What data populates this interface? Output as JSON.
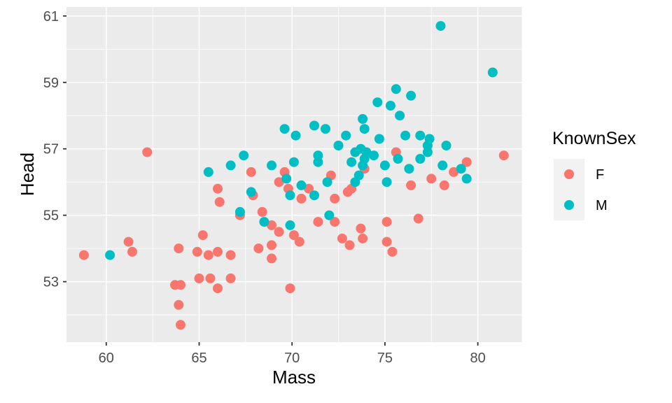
{
  "figure": {
    "background": "#ffffff",
    "panel_background": "#ebebeb",
    "grid_color": "#ffffff",
    "tick_color": "#333333",
    "tick_label_color": "#4d4d4d",
    "point_radius": 7
  },
  "chart_data": {
    "type": "scatter",
    "title": "",
    "xlabel": "Mass",
    "ylabel": "Head",
    "x_range": [
      57.86,
      82.37
    ],
    "y_range": [
      51.18,
      61.27
    ],
    "x_ticks": [
      60,
      65,
      70,
      75,
      80
    ],
    "y_ticks": [
      53,
      55,
      57,
      59,
      61
    ],
    "x_minor": [
      62.5,
      67.5,
      72.5,
      77.5
    ],
    "y_minor": [
      52,
      54,
      56,
      58,
      60
    ],
    "grid": true,
    "legend": {
      "title": "KnownSex",
      "position": "right",
      "key_fill": "#f2f2f2",
      "items": [
        {
          "label": "F",
          "color": "#F8766D"
        },
        {
          "label": "M",
          "color": "#00BFC4"
        }
      ]
    },
    "series": [
      {
        "name": "F",
        "color": "#F8766D",
        "points": [
          [
            62.2,
            56.9
          ],
          [
            66.0,
            55.8
          ],
          [
            66.1,
            55.4
          ],
          [
            67.8,
            56.3
          ],
          [
            69.6,
            56.3
          ],
          [
            69.3,
            56.0
          ],
          [
            72.1,
            56.2
          ],
          [
            73.9,
            56.4
          ],
          [
            73.2,
            55.8
          ],
          [
            73.0,
            55.7
          ],
          [
            72.3,
            55.5
          ],
          [
            67.9,
            55.6
          ],
          [
            69.8,
            55.8
          ],
          [
            70.9,
            55.8
          ],
          [
            70.5,
            55.5
          ],
          [
            67.2,
            55.0
          ],
          [
            68.4,
            55.1
          ],
          [
            68.9,
            54.7
          ],
          [
            69.3,
            54.5
          ],
          [
            70.1,
            54.4
          ],
          [
            70.4,
            54.2
          ],
          [
            71.4,
            54.8
          ],
          [
            72.3,
            54.8
          ],
          [
            75.6,
            56.9
          ],
          [
            79.4,
            56.6
          ],
          [
            78.7,
            56.3
          ],
          [
            77.5,
            56.1
          ],
          [
            78.2,
            55.9
          ],
          [
            76.4,
            55.9
          ],
          [
            81.4,
            56.8
          ],
          [
            58.8,
            53.8
          ],
          [
            61.4,
            53.9
          ],
          [
            61.2,
            54.2
          ],
          [
            65.2,
            54.4
          ],
          [
            63.9,
            54.0
          ],
          [
            64.9,
            53.9
          ],
          [
            65.5,
            53.8
          ],
          [
            66.0,
            53.9
          ],
          [
            65.0,
            53.1
          ],
          [
            65.6,
            53.1
          ],
          [
            66.0,
            52.8
          ],
          [
            63.7,
            52.9
          ],
          [
            64.0,
            52.9
          ],
          [
            63.9,
            52.3
          ],
          [
            64.0,
            51.7
          ],
          [
            68.2,
            54.0
          ],
          [
            68.9,
            54.1
          ],
          [
            68.9,
            53.7
          ],
          [
            66.7,
            53.8
          ],
          [
            66.7,
            53.1
          ],
          [
            69.9,
            52.8
          ],
          [
            72.7,
            54.3
          ],
          [
            73.1,
            54.1
          ],
          [
            73.8,
            54.3
          ],
          [
            73.7,
            54.6
          ],
          [
            75.1,
            54.8
          ],
          [
            75.1,
            54.2
          ],
          [
            75.4,
            53.9
          ],
          [
            76.8,
            54.9
          ]
        ]
      },
      {
        "name": "M",
        "color": "#00BFC4",
        "points": [
          [
            78.0,
            60.7
          ],
          [
            80.8,
            59.3
          ],
          [
            75.6,
            58.8
          ],
          [
            76.4,
            58.6
          ],
          [
            74.6,
            58.4
          ],
          [
            75.3,
            58.3
          ],
          [
            75.8,
            58.0
          ],
          [
            73.8,
            57.9
          ],
          [
            65.5,
            56.3
          ],
          [
            69.6,
            57.6
          ],
          [
            71.2,
            57.7
          ],
          [
            71.8,
            57.6
          ],
          [
            70.2,
            57.4
          ],
          [
            72.9,
            57.4
          ],
          [
            72.5,
            57.1
          ],
          [
            67.4,
            56.8
          ],
          [
            66.7,
            56.5
          ],
          [
            70.1,
            56.6
          ],
          [
            71.4,
            56.8
          ],
          [
            71.4,
            56.6
          ],
          [
            68.9,
            56.5
          ],
          [
            69.7,
            56.1
          ],
          [
            71.9,
            56.0
          ],
          [
            73.9,
            57.6
          ],
          [
            74.7,
            57.3
          ],
          [
            73.4,
            56.9
          ],
          [
            73.7,
            57.0
          ],
          [
            74.0,
            56.9
          ],
          [
            74.4,
            56.8
          ],
          [
            73.2,
            56.6
          ],
          [
            73.9,
            56.7
          ],
          [
            73.8,
            56.5
          ],
          [
            75.0,
            56.5
          ],
          [
            73.6,
            56.2
          ],
          [
            75.1,
            56.0
          ],
          [
            73.4,
            56.0
          ],
          [
            67.8,
            55.7
          ],
          [
            70.5,
            55.9
          ],
          [
            69.9,
            55.6
          ],
          [
            71.2,
            55.6
          ],
          [
            67.2,
            55.1
          ],
          [
            68.5,
            54.8
          ],
          [
            69.9,
            54.7
          ],
          [
            72.0,
            55.0
          ],
          [
            76.1,
            57.4
          ],
          [
            76.9,
            57.4
          ],
          [
            77.4,
            57.3
          ],
          [
            77.3,
            57.1
          ],
          [
            78.3,
            57.1
          ],
          [
            77.3,
            56.9
          ],
          [
            75.7,
            56.7
          ],
          [
            76.9,
            56.7
          ],
          [
            76.3,
            56.4
          ],
          [
            79.1,
            56.4
          ],
          [
            79.4,
            56.1
          ],
          [
            78.1,
            56.5
          ],
          [
            60.2,
            53.8
          ]
        ]
      }
    ]
  }
}
